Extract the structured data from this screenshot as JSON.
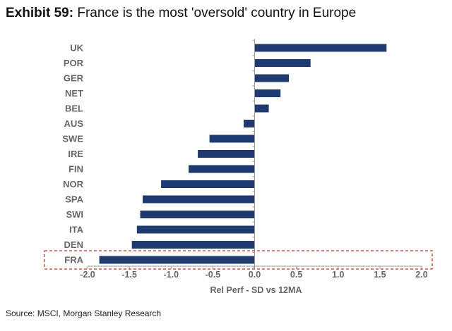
{
  "title": {
    "label": "Exhibit 59:",
    "text": "France is the most 'oversold' country in Europe"
  },
  "source": "Source: MSCI, Morgan Stanley Research",
  "chart_data": {
    "type": "bar",
    "orientation": "horizontal",
    "categories": [
      "UK",
      "POR",
      "GER",
      "NET",
      "BEL",
      "AUS",
      "SWE",
      "IRE",
      "FIN",
      "NOR",
      "SPA",
      "SWI",
      "ITA",
      "DEN",
      "FRA"
    ],
    "values": [
      1.58,
      0.67,
      0.41,
      0.31,
      0.17,
      -0.13,
      -0.54,
      -0.68,
      -0.79,
      -1.12,
      -1.34,
      -1.37,
      -1.41,
      -1.47,
      -1.86
    ],
    "xlabel": "Rel Perf - SD vs 12MA",
    "ylabel": "",
    "xlim": [
      -2.0,
      2.0
    ],
    "xticks": [
      "-2.0",
      "-1.5",
      "-1.0",
      "-0.5",
      "0.0",
      "0.5",
      "1.0",
      "1.5",
      "2.0"
    ],
    "tick_values": [
      -2.0,
      -1.5,
      -1.0,
      -0.5,
      0.0,
      0.5,
      1.0,
      1.5,
      2.0
    ],
    "highlight_category": "FRA",
    "bar_color": "#1f3a6e",
    "highlight_border_color": "#c0392b",
    "grid": false
  }
}
